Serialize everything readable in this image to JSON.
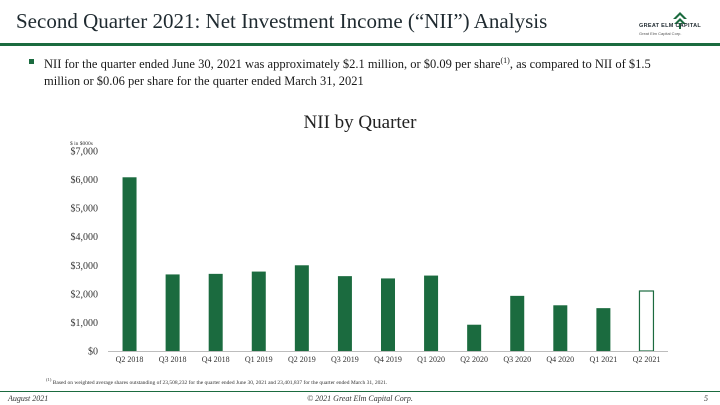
{
  "slide": {
    "title": "Second Quarter 2021: Net Investment Income (“NII”) Analysis",
    "bullet_main": "NII for the quarter ended June 30, 2021 was approximately $2.1 million, or $0.09 per share",
    "bullet_sup": "(1)",
    "bullet_rest": ", as compared to NII of $1.5 million or $0.06 per share for the quarter ended March 31, 2021",
    "footnote_sup": "(1)",
    "footnote": " Based on weighted average shares outstanding of 23,508,232 for the quarter ended June 30, 2021 and 23,401,837 for the quarter ended March 31, 2021.",
    "footer_left": "August 2021",
    "footer_center": "© 2021 Great Elm Capital Corp.",
    "page_number": "5"
  },
  "logo": {
    "name": "GREAT ELM CAPITAL",
    "tagline": "Great Elm Capital Corp.",
    "icon": "tree-chevron-icon"
  },
  "colors": {
    "brand_green": "#1b6b3f",
    "bar_fill": "#1b6b3f",
    "axis_text": "#333333"
  },
  "chart_data": {
    "type": "bar",
    "title": "NII by Quarter",
    "unit_label": "$ in $000s",
    "categories": [
      "Q2 2018",
      "Q3 2018",
      "Q4 2018",
      "Q1 2019",
      "Q2 2019",
      "Q3 2019",
      "Q4 2019",
      "Q1 2020",
      "Q2 2020",
      "Q3 2020",
      "Q4 2020",
      "Q1 2021",
      "Q2 2021"
    ],
    "values": [
      6080,
      2680,
      2700,
      2780,
      3000,
      2620,
      2540,
      2640,
      920,
      1930,
      1600,
      1500,
      2100
    ],
    "highlight": "Q2 2021",
    "ylim": [
      0,
      7000
    ],
    "yticks": [
      0,
      1000,
      2000,
      3000,
      4000,
      5000,
      6000,
      7000
    ],
    "ytick_labels": [
      "$0",
      "$1,000",
      "$2,000",
      "$3,000",
      "$4,000",
      "$5,000",
      "$6,000",
      "$7,000"
    ],
    "grid": false,
    "legend": "none"
  }
}
